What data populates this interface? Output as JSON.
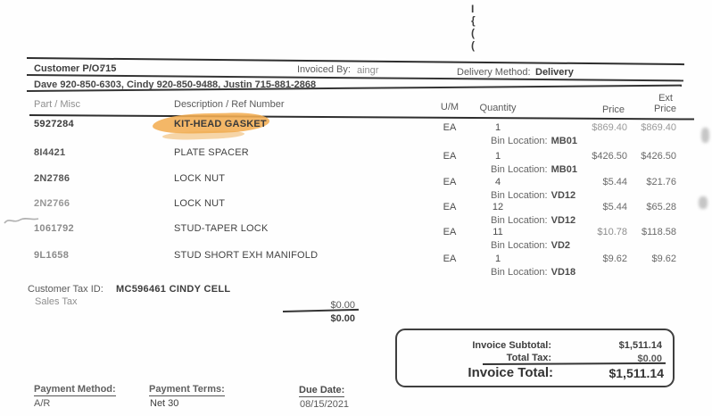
{
  "header": {
    "customer_po_label": "Customer P/O:",
    "customer_po_value": "715",
    "invoiced_by_label": "Invoiced By:",
    "invoiced_by_value": "aingr",
    "delivery_method_label": "Delivery Method:",
    "delivery_method_value": "Delivery",
    "contact_line": "Dave 920-850-6303, Cindy 920-850-9488, Justin 715-881-2868"
  },
  "artifacts": {
    "edge_marks": [
      "I",
      "{",
      "(",
      "("
    ]
  },
  "table": {
    "columns": {
      "part": "Part / Misc",
      "description": "Description / Ref Number",
      "um": "U/M",
      "quantity": "Quantity",
      "price": "Price",
      "ext_line1": "Ext",
      "ext_line2": "Price"
    },
    "bin_location_label": "Bin Location:",
    "rows": [
      {
        "part": "5927284",
        "description": "KIT-HEAD GASKET",
        "highlighted": true,
        "um": "EA",
        "qty": "1",
        "price": "$869.40",
        "ext": "$869.40",
        "bin": "MB01"
      },
      {
        "part": "8I4421",
        "description": "PLATE SPACER",
        "um": "EA",
        "qty": "1",
        "price": "$426.50",
        "ext": "$426.50",
        "bin": "MB01"
      },
      {
        "part": "2N2786",
        "description": "LOCK NUT",
        "um": "EA",
        "qty": "4",
        "price": "$5.44",
        "ext": "$21.76",
        "bin": "VD12"
      },
      {
        "part": "2N2766",
        "description": "LOCK NUT",
        "um": "EA",
        "qty": "12",
        "price": "$5.44",
        "ext": "$65.28",
        "bin": "VD12"
      },
      {
        "part": "1061792",
        "description": "STUD-TAPER LOCK",
        "um": "EA",
        "qty": "11",
        "price": "$10.78",
        "ext": "$118.58",
        "bin": "VD2"
      },
      {
        "part": "9L1658",
        "description": "STUD SHORT EXH MANIFOLD",
        "um": "EA",
        "qty": "1",
        "price": "$9.62",
        "ext": "$9.62",
        "bin": "VD18"
      }
    ]
  },
  "tax_section": {
    "customer_tax_id_label": "Customer Tax ID:",
    "customer_tax_id_value": "MC596461 CINDY CELL",
    "sales_tax_label": "Sales Tax",
    "sales_tax_value": "$0.00",
    "sales_tax_total": "$0.00"
  },
  "totals": {
    "subtotal_label": "Invoice Subtotal:",
    "subtotal_value": "$1,511.14",
    "tax_label": "Total Tax:",
    "tax_value": "$0.00",
    "total_label": "Invoice Total:",
    "total_value": "$1,511.14"
  },
  "footer": {
    "payment_method_label": "Payment Method:",
    "payment_method_value": "A/R",
    "payment_terms_label": "Payment Terms:",
    "payment_terms_value": "Net 30",
    "due_date_label": "Due Date:",
    "due_date_value": "08/15/2021"
  },
  "colors": {
    "highlight": "#f3ad52",
    "ink": "#3d3d3d"
  }
}
